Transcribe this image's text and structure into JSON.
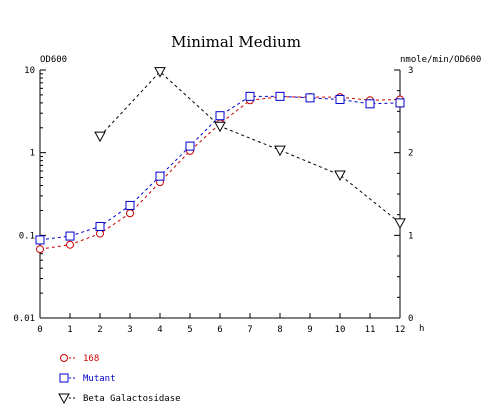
{
  "chart_data": {
    "type": "line",
    "title": "Minimal Medium",
    "xlabel": "h",
    "ylabel_left": "OD600",
    "ylabel_right": "nmole/min/OD600",
    "x_ticks": [
      "0",
      "1",
      "2",
      "3",
      "4",
      "5",
      "6",
      "7",
      "8",
      "9",
      "10",
      "11",
      "12"
    ],
    "x_range": [
      0,
      12
    ],
    "y_left_range": [
      0.01,
      10
    ],
    "y_left_scale": "log",
    "y_left_ticks": [
      "0.01",
      "0.1",
      "1",
      "10"
    ],
    "y_right_range": [
      0,
      3
    ],
    "y_right_ticks": [
      "0",
      "1",
      "2",
      "3"
    ],
    "grid": false,
    "legend_position": "bottom-left",
    "series": [
      {
        "name": "168",
        "axis": "left",
        "color": "#cc0000",
        "marker": "circle",
        "line": "dashed",
        "x": [
          0,
          1,
          2,
          3,
          4,
          5,
          6,
          7,
          8,
          9,
          10,
          11,
          12
        ],
        "y": [
          0.068,
          0.077,
          0.105,
          0.185,
          0.44,
          1.05,
          2.25,
          4.3,
          4.75,
          4.7,
          4.7,
          4.3,
          4.4
        ]
      },
      {
        "name": "Mutant",
        "axis": "left",
        "color": "#0000cc",
        "marker": "square",
        "line": "dashed",
        "x": [
          0,
          1,
          2,
          3,
          4,
          5,
          6,
          7,
          8,
          9,
          10,
          11,
          12
        ],
        "y": [
          0.088,
          0.098,
          0.128,
          0.23,
          0.52,
          1.2,
          2.8,
          4.8,
          4.8,
          4.6,
          4.4,
          3.9,
          4.0
        ]
      },
      {
        "name": "Beta Galactosidase",
        "axis": "right",
        "color": "#000000",
        "marker": "triangle-down",
        "line": "dashed",
        "x": [
          2,
          4,
          6,
          8,
          10,
          12
        ],
        "y": [
          2.2,
          2.98,
          2.32,
          2.03,
          1.73,
          1.15
        ]
      }
    ]
  }
}
